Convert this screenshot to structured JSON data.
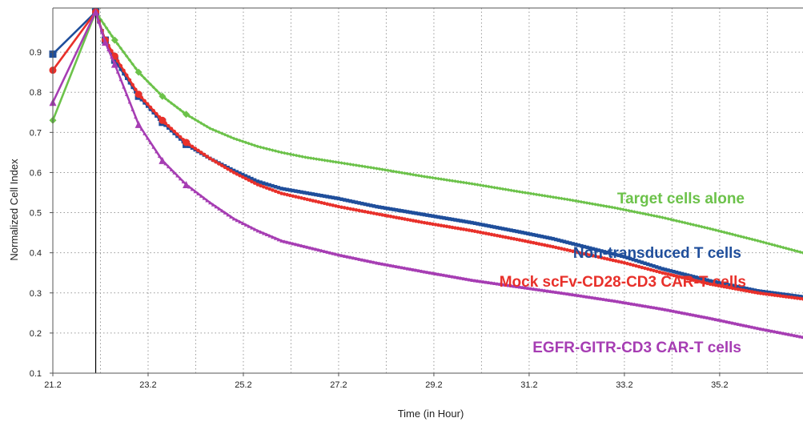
{
  "chart_data": {
    "type": "line",
    "xlabel": "Time (in Hour)",
    "ylabel": "Normalized Cell Index",
    "xlim": [
      21.2,
      36.95
    ],
    "ylim": [
      0.1,
      1.01
    ],
    "x_ticks": [
      "21.2",
      "23.2",
      "25.2",
      "27.2",
      "29.2",
      "31.2",
      "33.2",
      "35.2"
    ],
    "y_ticks": [
      "0.1",
      "0.2",
      "0.3",
      "0.4",
      "0.5",
      "0.6",
      "0.7",
      "0.8",
      "0.9"
    ],
    "normalization_time": 22.1,
    "grid": true,
    "series": [
      {
        "name": "Target cells alone",
        "color": "#6cc24a",
        "marker": "diamond",
        "points": [
          [
            21.2,
            0.73
          ],
          [
            22.1,
            1.0
          ],
          [
            22.5,
            0.93
          ],
          [
            23.0,
            0.85
          ],
          [
            23.5,
            0.79
          ],
          [
            24.0,
            0.745
          ],
          [
            24.5,
            0.71
          ],
          [
            25.0,
            0.685
          ],
          [
            25.5,
            0.665
          ],
          [
            26.0,
            0.65
          ],
          [
            26.5,
            0.638
          ],
          [
            27.2,
            0.625
          ],
          [
            28.0,
            0.61
          ],
          [
            29.0,
            0.59
          ],
          [
            30.0,
            0.572
          ],
          [
            31.0,
            0.552
          ],
          [
            32.0,
            0.533
          ],
          [
            33.0,
            0.512
          ],
          [
            34.0,
            0.488
          ],
          [
            35.0,
            0.46
          ],
          [
            36.0,
            0.43
          ],
          [
            36.95,
            0.4
          ]
        ]
      },
      {
        "name": "Non-transduced T cells",
        "color": "#1f4e9b",
        "marker": "square",
        "points": [
          [
            21.2,
            0.895
          ],
          [
            22.1,
            1.0
          ],
          [
            22.3,
            0.93
          ],
          [
            22.5,
            0.88
          ],
          [
            23.0,
            0.79
          ],
          [
            23.5,
            0.725
          ],
          [
            24.0,
            0.67
          ],
          [
            24.5,
            0.635
          ],
          [
            25.0,
            0.605
          ],
          [
            25.5,
            0.578
          ],
          [
            26.0,
            0.56
          ],
          [
            27.2,
            0.535
          ],
          [
            28.0,
            0.515
          ],
          [
            29.0,
            0.495
          ],
          [
            30.0,
            0.475
          ],
          [
            31.0,
            0.452
          ],
          [
            31.7,
            0.435
          ],
          [
            33.2,
            0.39
          ],
          [
            34.0,
            0.36
          ],
          [
            35.0,
            0.33
          ],
          [
            36.0,
            0.305
          ],
          [
            36.95,
            0.29
          ]
        ]
      },
      {
        "name": "Mock scFv-CD28-CD3 CAR-T cells",
        "color": "#e8302a",
        "marker": "circle",
        "points": [
          [
            21.2,
            0.855
          ],
          [
            22.1,
            1.0
          ],
          [
            22.3,
            0.93
          ],
          [
            22.5,
            0.89
          ],
          [
            23.0,
            0.795
          ],
          [
            23.5,
            0.73
          ],
          [
            24.0,
            0.675
          ],
          [
            24.5,
            0.635
          ],
          [
            25.0,
            0.6
          ],
          [
            25.5,
            0.57
          ],
          [
            26.0,
            0.548
          ],
          [
            27.2,
            0.515
          ],
          [
            28.0,
            0.497
          ],
          [
            29.0,
            0.475
          ],
          [
            30.0,
            0.455
          ],
          [
            31.0,
            0.432
          ],
          [
            31.7,
            0.415
          ],
          [
            33.2,
            0.375
          ],
          [
            34.0,
            0.35
          ],
          [
            35.0,
            0.322
          ],
          [
            36.0,
            0.3
          ],
          [
            36.95,
            0.285
          ]
        ]
      },
      {
        "name": "EGFR-GITR-CD3 CAR-T cells",
        "color": "#a63db3",
        "marker": "triangle",
        "points": [
          [
            21.2,
            0.775
          ],
          [
            22.1,
            1.0
          ],
          [
            22.3,
            0.925
          ],
          [
            22.5,
            0.87
          ],
          [
            23.0,
            0.72
          ],
          [
            23.5,
            0.63
          ],
          [
            24.0,
            0.57
          ],
          [
            24.5,
            0.525
          ],
          [
            25.0,
            0.485
          ],
          [
            25.5,
            0.455
          ],
          [
            26.0,
            0.43
          ],
          [
            27.2,
            0.395
          ],
          [
            28.0,
            0.375
          ],
          [
            29.0,
            0.353
          ],
          [
            30.0,
            0.332
          ],
          [
            31.0,
            0.315
          ],
          [
            32.0,
            0.298
          ],
          [
            33.0,
            0.28
          ],
          [
            34.0,
            0.26
          ],
          [
            35.0,
            0.237
          ],
          [
            36.0,
            0.212
          ],
          [
            36.95,
            0.19
          ]
        ]
      }
    ]
  }
}
